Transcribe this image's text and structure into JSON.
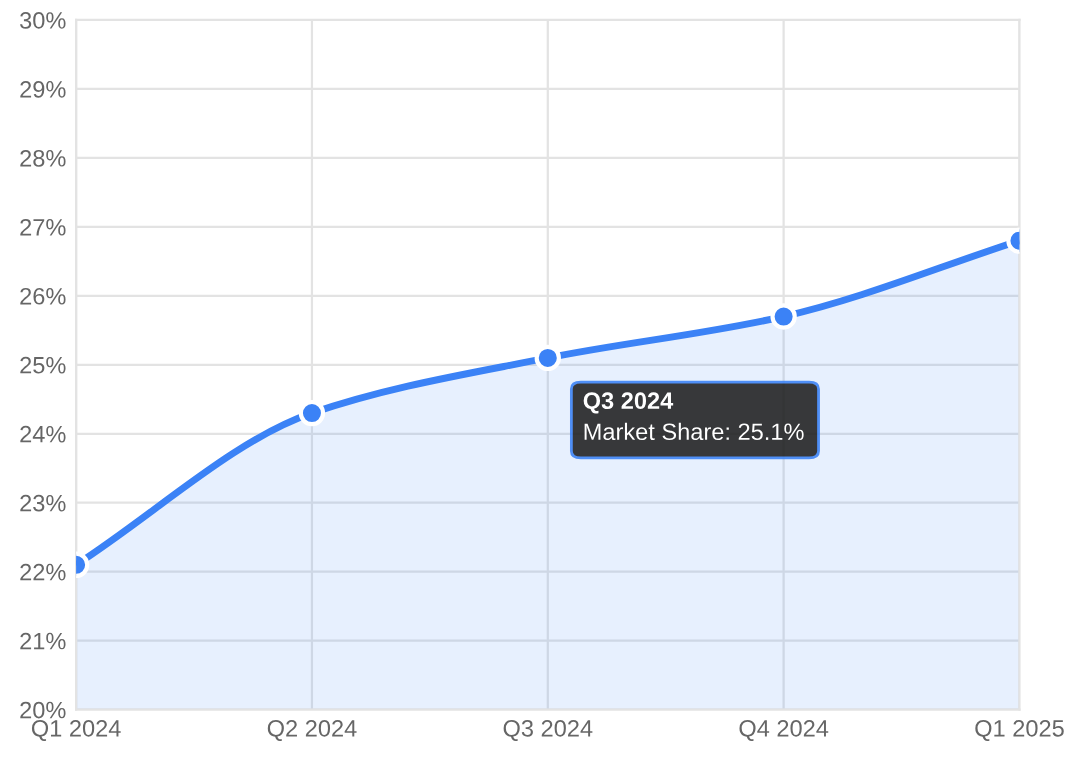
{
  "chart_data": {
    "type": "area",
    "categories": [
      "Q1 2024",
      "Q2 2024",
      "Q3 2024",
      "Q4 2024",
      "Q1 2025"
    ],
    "series": [
      {
        "color": "#3b82f6",
        "values": [
          22.1,
          24.3,
          25.1,
          25.7,
          26.8
        ]
      }
    ],
    "annotations": [
      "Q3 2024",
      "Market Share: 25.1%"
    ],
    "ylim": [
      20,
      30
    ],
    "yticks": [
      {
        "value": 20,
        "label": "20%"
      },
      {
        "value": 21,
        "label": "21%"
      },
      {
        "value": 22,
        "label": "22%"
      },
      {
        "value": 23,
        "label": "23%"
      },
      {
        "value": 24,
        "label": "24%"
      },
      {
        "value": 25,
        "label": "25%"
      },
      {
        "value": 26,
        "label": "26%"
      },
      {
        "value": 27,
        "label": "27%"
      },
      {
        "value": 28,
        "label": "28%"
      },
      {
        "value": 29,
        "label": "29%"
      },
      {
        "value": 30,
        "label": "30%"
      }
    ],
    "grid": true,
    "marker": "circle",
    "line_style": "solid"
  }
}
